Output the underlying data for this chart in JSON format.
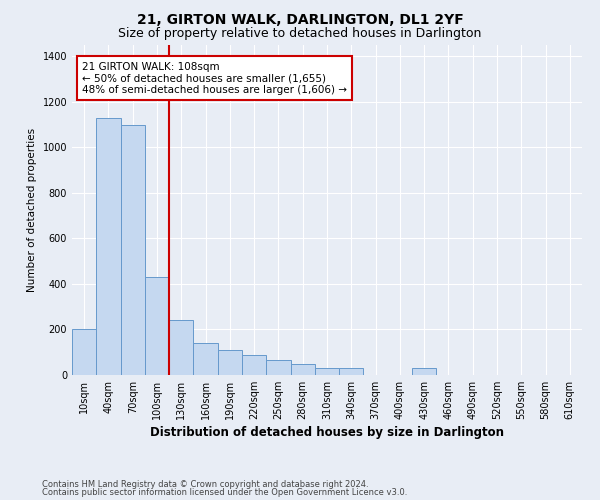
{
  "title": "21, GIRTON WALK, DARLINGTON, DL1 2YF",
  "subtitle": "Size of property relative to detached houses in Darlington",
  "xlabel": "Distribution of detached houses by size in Darlington",
  "ylabel": "Number of detached properties",
  "footnote1": "Contains HM Land Registry data © Crown copyright and database right 2024.",
  "footnote2": "Contains public sector information licensed under the Open Government Licence v3.0.",
  "annotation_title": "21 GIRTON WALK: 108sqm",
  "annotation_line1": "← 50% of detached houses are smaller (1,655)",
  "annotation_line2": "48% of semi-detached houses are larger (1,606) →",
  "bar_categories": [
    "10sqm",
    "40sqm",
    "70sqm",
    "100sqm",
    "130sqm",
    "160sqm",
    "190sqm",
    "220sqm",
    "250sqm",
    "280sqm",
    "310sqm",
    "340sqm",
    "370sqm",
    "400sqm",
    "430sqm",
    "460sqm",
    "490sqm",
    "520sqm",
    "550sqm",
    "580sqm",
    "610sqm"
  ],
  "bar_values": [
    200,
    1130,
    1100,
    430,
    240,
    140,
    110,
    90,
    65,
    50,
    30,
    30,
    0,
    0,
    30,
    0,
    0,
    0,
    0,
    0,
    0
  ],
  "bar_color": "#c5d8f0",
  "bar_edge_color": "#6699cc",
  "background_color": "#e8edf5",
  "plot_bg_color": "#e8edf5",
  "grid_color": "#ffffff",
  "annotation_box_color": "#ffffff",
  "annotation_border_color": "#cc0000",
  "vline_color": "#cc0000",
  "ylim": [
    0,
    1450
  ],
  "yticks": [
    0,
    200,
    400,
    600,
    800,
    1000,
    1200,
    1400
  ],
  "vline_x_index": 3.5,
  "title_fontsize": 10,
  "subtitle_fontsize": 9,
  "xlabel_fontsize": 8.5,
  "ylabel_fontsize": 7.5,
  "tick_fontsize": 7,
  "annotation_fontsize": 7.5,
  "footnote_fontsize": 6
}
